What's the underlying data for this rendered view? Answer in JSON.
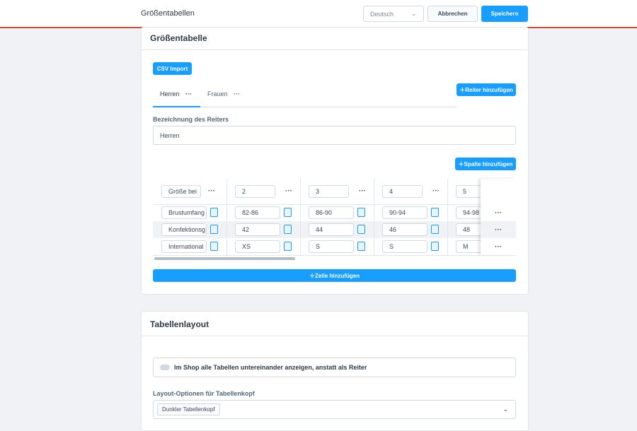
{
  "header": {
    "title": "Größentabellen",
    "language": "Deutsch",
    "cancel": "Abbrechen",
    "save": "Speichern"
  },
  "size_table": {
    "title": "Größentabelle",
    "csv_import": "CSV Import",
    "tabs": [
      "Herren",
      "Frauen"
    ],
    "add_tab": "Reiter hinzufügen",
    "tab_label_caption": "Bezeichnung des Reiters",
    "tab_label_value": "Herren",
    "add_column": "Spalte hinzufügen",
    "header_row": [
      "Größe bei",
      "2",
      "3",
      "4",
      "5"
    ],
    "rows": [
      [
        "Brustumfang",
        "82-86",
        "86-90",
        "90-94",
        "94-98"
      ],
      [
        "Konfektionsg",
        "42",
        "44",
        "46",
        "48"
      ],
      [
        "International",
        "XS",
        "S",
        "S",
        "M"
      ]
    ],
    "add_row": "Zeile hinzufügen"
  },
  "layout": {
    "title": "Tabellenlayout",
    "toggle_label": "Im Shop alle Tabellen untereinander anzeigen, anstatt als Reiter",
    "header_options_label": "Layout-Optionen für Tabellenkopf",
    "header_option_value": "Dunkler Tabellenkopf"
  }
}
